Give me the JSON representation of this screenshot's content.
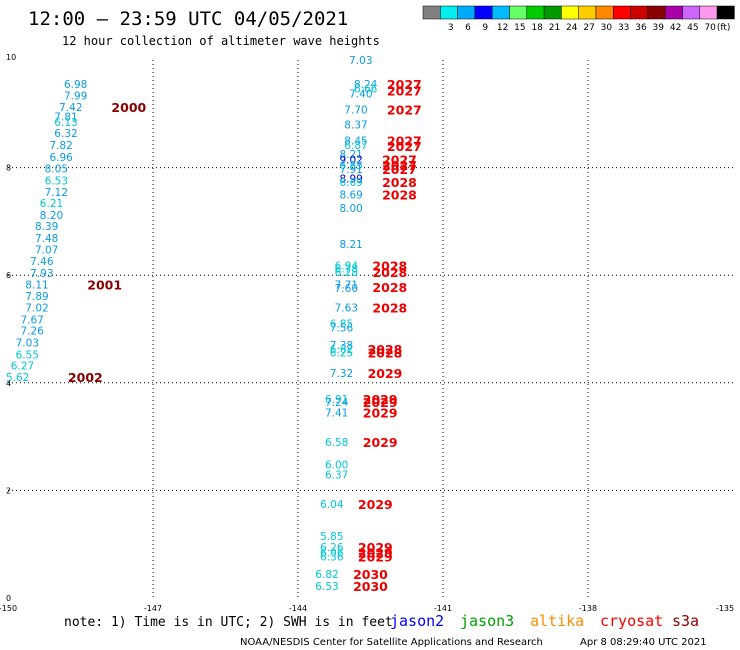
{
  "header": {
    "title": "12:00 – 23:59 UTC 04/05/2021",
    "subtitle": "12 hour collection of altimeter wave heights"
  },
  "colors": {
    "cyan_values": "#00c8d8",
    "blue_values": "#0a9ce8",
    "dark_blue_values": "#0000cc",
    "dark_red_times": "#880000",
    "red_times": "#ee0000",
    "jason2": "#0000ff",
    "jason3": "#00a000",
    "altika": "#ff8c00",
    "cryosat": "#ff0000",
    "s3a": "#880000"
  },
  "colorbar": {
    "unit": "(ft)",
    "bins": [
      {
        "color": "#808080",
        "label": ""
      },
      {
        "color": "#00eeee",
        "label": "3"
      },
      {
        "color": "#00aaff",
        "label": "6"
      },
      {
        "color": "#0000ff",
        "label": "9"
      },
      {
        "color": "#00bbff",
        "label": "12"
      },
      {
        "color": "#66ff66",
        "label": "15"
      },
      {
        "color": "#00cc00",
        "label": "18"
      },
      {
        "color": "#009900",
        "label": "21"
      },
      {
        "color": "#ffff00",
        "label": "24"
      },
      {
        "color": "#ffcc00",
        "label": "27"
      },
      {
        "color": "#ff8800",
        "label": "30"
      },
      {
        "color": "#ff0000",
        "label": "33"
      },
      {
        "color": "#cc0000",
        "label": "36"
      },
      {
        "color": "#880000",
        "label": "39"
      },
      {
        "color": "#aa00aa",
        "label": "42"
      },
      {
        "color": "#cc66ff",
        "label": "45"
      },
      {
        "color": "#ff99ee",
        "label": "70"
      },
      {
        "color": "#000000",
        "label": ""
      }
    ]
  },
  "footer": {
    "note": "note: 1) Time is in UTC; 2) SWH is in feet",
    "missions": [
      {
        "name": "jason2",
        "color": "#0000ff"
      },
      {
        "name": "jason3",
        "color": "#00a000"
      },
      {
        "name": "altika",
        "color": "#ff8c00"
      },
      {
        "name": "cryosat",
        "color": "#ff0000"
      },
      {
        "name": "s3a",
        "color": "#880000"
      }
    ],
    "credit": "NOAA/NESDIS Center for Satellite Applications and Research",
    "timestamp": "Apr  8 08:29:40 UTC 2021"
  },
  "chart_data": {
    "type": "scatter",
    "title": "12:00 – 23:59 UTC 04/05/2021",
    "subtitle": "12 hour collection of altimeter wave heights",
    "xlim": [
      -150,
      -135
    ],
    "ylim": [
      0,
      10
    ],
    "x_ticks": [
      "-150",
      "-147",
      "-144",
      "-141",
      "-138",
      "-135"
    ],
    "y_ticks": [
      "0",
      "2",
      "4",
      "6",
      "8",
      "10"
    ],
    "grid": true,
    "track_a": {
      "values": [
        {
          "x": -148.6,
          "y": 9.55,
          "label": "6.98",
          "color": "#0a9ce8"
        },
        {
          "x": -148.6,
          "y": 9.34,
          "label": "7.99",
          "color": "#0a9ce8"
        },
        {
          "x": -148.7,
          "y": 9.13,
          "label": "7.42",
          "color": "#0a9ce8"
        },
        {
          "x": -148.8,
          "y": 8.95,
          "label": "7.81",
          "color": "#0a9ce8"
        },
        {
          "x": -148.8,
          "y": 8.85,
          "label": "6.13",
          "color": "#00c8d8"
        },
        {
          "x": -148.8,
          "y": 8.64,
          "label": "6.32",
          "color": "#0a9ce8"
        },
        {
          "x": -148.9,
          "y": 8.42,
          "label": "7.82",
          "color": "#0a9ce8"
        },
        {
          "x": -148.9,
          "y": 8.2,
          "label": "6.96",
          "color": "#0a9ce8"
        },
        {
          "x": -149.0,
          "y": 7.98,
          "label": "8.05",
          "color": "#0a9ce8"
        },
        {
          "x": -149.0,
          "y": 7.76,
          "label": "6.53",
          "color": "#00c8d8"
        },
        {
          "x": -149.0,
          "y": 7.55,
          "label": "7.12",
          "color": "#0a9ce8"
        },
        {
          "x": -149.1,
          "y": 7.34,
          "label": "6.21",
          "color": "#00c8d8"
        },
        {
          "x": -149.1,
          "y": 7.12,
          "label": "8.20",
          "color": "#0a9ce8"
        },
        {
          "x": -149.2,
          "y": 6.91,
          "label": "8.39",
          "color": "#0a9ce8"
        },
        {
          "x": -149.2,
          "y": 6.69,
          "label": "7.48",
          "color": "#0a9ce8"
        },
        {
          "x": -149.2,
          "y": 6.48,
          "label": "7.07",
          "color": "#0a9ce8"
        },
        {
          "x": -149.3,
          "y": 6.26,
          "label": "7.46",
          "color": "#0a9ce8"
        },
        {
          "x": -149.3,
          "y": 6.04,
          "label": "7.93",
          "color": "#0a9ce8"
        },
        {
          "x": -149.4,
          "y": 5.83,
          "label": "8.11",
          "color": "#0a9ce8"
        },
        {
          "x": -149.4,
          "y": 5.61,
          "label": "7.89",
          "color": "#0a9ce8"
        },
        {
          "x": -149.4,
          "y": 5.4,
          "label": "7.02",
          "color": "#0a9ce8"
        },
        {
          "x": -149.5,
          "y": 5.18,
          "label": "7.67",
          "color": "#0a9ce8"
        },
        {
          "x": -149.5,
          "y": 4.97,
          "label": "7.26",
          "color": "#0a9ce8"
        },
        {
          "x": -149.6,
          "y": 4.75,
          "label": "7.03",
          "color": "#0a9ce8"
        },
        {
          "x": -149.6,
          "y": 4.53,
          "label": "6.55",
          "color": "#00c8d8"
        },
        {
          "x": -149.7,
          "y": 4.32,
          "label": "6.27",
          "color": "#00c8d8"
        },
        {
          "x": -149.8,
          "y": 4.11,
          "label": "5.62",
          "color": "#00c8d8"
        }
      ],
      "times": [
        {
          "x": -147.5,
          "y": 9.13,
          "label": "2000",
          "color": "#880000"
        },
        {
          "x": -148.0,
          "y": 5.83,
          "label": "2001",
          "color": "#880000"
        },
        {
          "x": -148.4,
          "y": 4.11,
          "label": "2002",
          "color": "#880000"
        }
      ]
    },
    "track_b": {
      "values": [
        {
          "x": -142.7,
          "y": 10.0,
          "label": "7.03",
          "color": "#0a9ce8"
        },
        {
          "x": -142.6,
          "y": 9.55,
          "label": "8.24",
          "color": "#0a9ce8"
        },
        {
          "x": -142.6,
          "y": 9.47,
          "label": "6.66",
          "color": "#00c8d8"
        },
        {
          "x": -142.7,
          "y": 9.38,
          "label": "7.40",
          "color": "#0a9ce8"
        },
        {
          "x": -142.8,
          "y": 9.08,
          "label": "7.70",
          "color": "#0a9ce8"
        },
        {
          "x": -142.8,
          "y": 8.8,
          "label": "8.37",
          "color": "#0a9ce8"
        },
        {
          "x": -142.8,
          "y": 8.5,
          "label": "8.45",
          "color": "#0a9ce8"
        },
        {
          "x": -142.8,
          "y": 8.42,
          "label": "6.87",
          "color": "#00c8d8"
        },
        {
          "x": -142.9,
          "y": 8.25,
          "label": "8.21",
          "color": "#0a9ce8"
        },
        {
          "x": -142.9,
          "y": 8.15,
          "label": "9.02",
          "color": "#0000cc"
        },
        {
          "x": -142.9,
          "y": 8.05,
          "label": "6.85",
          "color": "#00c8d8"
        },
        {
          "x": -142.9,
          "y": 7.97,
          "label": "7.91",
          "color": "#0a9ce8"
        },
        {
          "x": -142.9,
          "y": 7.8,
          "label": "8.99",
          "color": "#0000cc"
        },
        {
          "x": -142.9,
          "y": 7.73,
          "label": "6.69",
          "color": "#00c8d8"
        },
        {
          "x": -142.9,
          "y": 7.5,
          "label": "8.69",
          "color": "#0a9ce8"
        },
        {
          "x": -142.9,
          "y": 7.25,
          "label": "8.00",
          "color": "#0a9ce8"
        },
        {
          "x": -142.9,
          "y": 6.58,
          "label": "8.21",
          "color": "#0a9ce8"
        },
        {
          "x": -143.0,
          "y": 6.18,
          "label": "6.94",
          "color": "#00c8d8"
        },
        {
          "x": -143.0,
          "y": 6.12,
          "label": "6.78",
          "color": "#00c8d8"
        },
        {
          "x": -143.0,
          "y": 6.06,
          "label": "6.28",
          "color": "#00c8d8"
        },
        {
          "x": -143.0,
          "y": 5.83,
          "label": "7.71",
          "color": "#0a9ce8"
        },
        {
          "x": -143.0,
          "y": 5.76,
          "label": "7.60",
          "color": "#0a9ce8"
        },
        {
          "x": -143.0,
          "y": 5.4,
          "label": "7.63",
          "color": "#0a9ce8"
        },
        {
          "x": -143.1,
          "y": 5.1,
          "label": "6.85",
          "color": "#00c8d8"
        },
        {
          "x": -143.1,
          "y": 5.03,
          "label": "7.56",
          "color": "#0a9ce8"
        },
        {
          "x": -143.1,
          "y": 4.7,
          "label": "7.38",
          "color": "#0a9ce8"
        },
        {
          "x": -143.1,
          "y": 4.63,
          "label": "6.62",
          "color": "#00c8d8"
        },
        {
          "x": -143.1,
          "y": 4.56,
          "label": "6.25",
          "color": "#00c8d8"
        },
        {
          "x": -143.1,
          "y": 4.18,
          "label": "7.32",
          "color": "#0a9ce8"
        },
        {
          "x": -143.2,
          "y": 3.7,
          "label": "6.91",
          "color": "#00c8d8"
        },
        {
          "x": -143.2,
          "y": 3.64,
          "label": "7.24",
          "color": "#0a9ce8"
        },
        {
          "x": -143.2,
          "y": 3.45,
          "label": "7.41",
          "color": "#0a9ce8"
        },
        {
          "x": -143.2,
          "y": 2.9,
          "label": "6.58",
          "color": "#00c8d8"
        },
        {
          "x": -143.2,
          "y": 2.48,
          "label": "6.00",
          "color": "#00c8d8"
        },
        {
          "x": -143.2,
          "y": 2.3,
          "label": "6.37",
          "color": "#00c8d8"
        },
        {
          "x": -143.3,
          "y": 1.75,
          "label": "6.04",
          "color": "#00c8d8"
        },
        {
          "x": -143.3,
          "y": 1.15,
          "label": "5.85",
          "color": "#00c8d8"
        },
        {
          "x": -143.3,
          "y": 0.95,
          "label": "6.26",
          "color": "#00c8d8"
        },
        {
          "x": -143.3,
          "y": 0.85,
          "label": "6.06",
          "color": "#00c8d8"
        },
        {
          "x": -143.3,
          "y": 0.77,
          "label": "6.36",
          "color": "#00c8d8"
        },
        {
          "x": -143.4,
          "y": 0.45,
          "label": "6.82",
          "color": "#00c8d8"
        },
        {
          "x": -143.4,
          "y": 0.22,
          "label": "6.53",
          "color": "#00c8d8"
        }
      ],
      "times": [
        {
          "x": -141.8,
          "y": 9.55,
          "label": "2027",
          "color": "#ee0000"
        },
        {
          "x": -141.8,
          "y": 9.43,
          "label": "2027",
          "color": "#ee0000"
        },
        {
          "x": -141.8,
          "y": 9.08,
          "label": "2027",
          "color": "#ee0000"
        },
        {
          "x": -141.8,
          "y": 8.5,
          "label": "2027",
          "color": "#ee0000"
        },
        {
          "x": -141.8,
          "y": 8.4,
          "label": "2027",
          "color": "#ee0000"
        },
        {
          "x": -141.9,
          "y": 8.15,
          "label": "2027",
          "color": "#ee0000"
        },
        {
          "x": -141.9,
          "y": 8.05,
          "label": "2027",
          "color": "#ee0000"
        },
        {
          "x": -141.9,
          "y": 7.97,
          "label": "2027",
          "color": "#ee0000"
        },
        {
          "x": -141.9,
          "y": 7.73,
          "label": "2028",
          "color": "#ee0000"
        },
        {
          "x": -141.9,
          "y": 7.5,
          "label": "2028",
          "color": "#ee0000"
        },
        {
          "x": -142.1,
          "y": 6.18,
          "label": "2028",
          "color": "#ee0000"
        },
        {
          "x": -142.1,
          "y": 6.06,
          "label": "2028",
          "color": "#ee0000"
        },
        {
          "x": -142.1,
          "y": 5.78,
          "label": "2028",
          "color": "#ee0000"
        },
        {
          "x": -142.1,
          "y": 5.4,
          "label": "2028",
          "color": "#ee0000"
        },
        {
          "x": -142.2,
          "y": 4.63,
          "label": "2028",
          "color": "#ee0000"
        },
        {
          "x": -142.2,
          "y": 4.56,
          "label": "2028",
          "color": "#ee0000"
        },
        {
          "x": -142.2,
          "y": 4.18,
          "label": "2029",
          "color": "#ee0000"
        },
        {
          "x": -142.3,
          "y": 3.7,
          "label": "2029",
          "color": "#ee0000"
        },
        {
          "x": -142.3,
          "y": 3.64,
          "label": "2029",
          "color": "#ee0000"
        },
        {
          "x": -142.3,
          "y": 3.45,
          "label": "2029",
          "color": "#ee0000"
        },
        {
          "x": -142.3,
          "y": 2.9,
          "label": "2029",
          "color": "#ee0000"
        },
        {
          "x": -142.4,
          "y": 1.75,
          "label": "2029",
          "color": "#ee0000"
        },
        {
          "x": -142.4,
          "y": 0.95,
          "label": "2029",
          "color": "#ee0000"
        },
        {
          "x": -142.4,
          "y": 0.85,
          "label": "2029",
          "color": "#ee0000"
        },
        {
          "x": -142.4,
          "y": 0.77,
          "label": "2029",
          "color": "#ee0000"
        },
        {
          "x": -142.5,
          "y": 0.45,
          "label": "2030",
          "color": "#ee0000"
        },
        {
          "x": -142.5,
          "y": 0.22,
          "label": "2030",
          "color": "#ee0000"
        }
      ]
    }
  }
}
